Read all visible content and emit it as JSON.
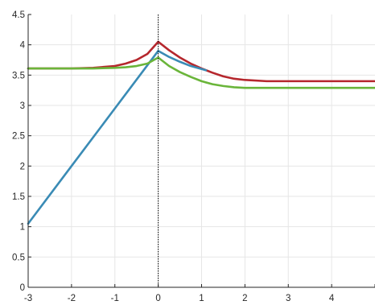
{
  "chart_data": {
    "type": "line",
    "title": "",
    "xlabel": "",
    "ylabel": "",
    "xlim": [
      -3,
      5
    ],
    "ylim": [
      0,
      4.5
    ],
    "xticks": [
      -3,
      -2,
      -1,
      0,
      1,
      2,
      3,
      4,
      5
    ],
    "xtick_labels": [
      "-3",
      "-2",
      "-1",
      "0",
      "1",
      "2",
      "3",
      "4",
      ""
    ],
    "yticks": [
      0,
      0.5,
      1,
      1.5,
      2,
      2.5,
      3,
      3.5,
      4,
      4.5
    ],
    "ytick_labels": [
      "0",
      "0.5",
      "1",
      "1.5",
      "2",
      "2.5",
      "3",
      "3.5",
      "4",
      "4.5"
    ],
    "grid": true,
    "vertical_line": {
      "x": 0,
      "style": "dotted",
      "color": "#000000"
    },
    "series": [
      {
        "color": "#b5272d",
        "x": [
          -3,
          -2,
          -1.5,
          -1,
          -0.75,
          -0.5,
          -0.25,
          0,
          0.25,
          0.5,
          0.75,
          1,
          1.25,
          1.5,
          1.75,
          2,
          2.5,
          3,
          4,
          5
        ],
        "y": [
          3.61,
          3.61,
          3.62,
          3.65,
          3.69,
          3.75,
          3.85,
          4.05,
          3.91,
          3.79,
          3.69,
          3.61,
          3.54,
          3.48,
          3.44,
          3.42,
          3.4,
          3.4,
          3.4,
          3.4
        ]
      },
      {
        "color": "#3a8bb5",
        "x": [
          -3,
          -2,
          -1,
          0,
          0.25,
          0.5,
          0.75,
          1,
          1.1
        ],
        "y": [
          1.05,
          2.0,
          2.95,
          3.9,
          3.8,
          3.72,
          3.65,
          3.6,
          3.58
        ]
      },
      {
        "color": "#6ab53a",
        "x": [
          -3,
          -2,
          -1.5,
          -1,
          -0.75,
          -0.5,
          -0.25,
          0,
          0.25,
          0.5,
          0.75,
          1,
          1.25,
          1.5,
          1.75,
          2,
          2.5,
          3,
          4,
          5
        ],
        "y": [
          3.61,
          3.61,
          3.61,
          3.62,
          3.63,
          3.65,
          3.69,
          3.79,
          3.65,
          3.55,
          3.47,
          3.4,
          3.35,
          3.32,
          3.3,
          3.29,
          3.29,
          3.29,
          3.29,
          3.29
        ]
      }
    ]
  }
}
